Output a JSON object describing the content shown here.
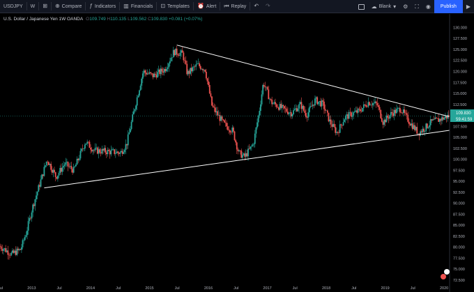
{
  "toolbar": {
    "symbol": "USDJPY",
    "interval": "W",
    "compare": "Compare",
    "indicators": "Indicators",
    "financials": "Financials",
    "templates": "Templates",
    "alert": "Alert",
    "replay": "Replay",
    "theme": "Blank",
    "publish": "Publish"
  },
  "legend": {
    "title": "U.S. Dollar / Japanese Yen  1W  OANDA",
    "open_label": "O",
    "open": "109.749",
    "high_label": "H",
    "high": "110.135",
    "low_label": "L",
    "low": "109.562",
    "close_label": "C",
    "close": "109.830",
    "change": "+0.081 (+0.07%)"
  },
  "price_badge": {
    "price": "109.830",
    "countdown": "59:41:59"
  },
  "colors": {
    "up": "#26a69a",
    "down": "#ef5350",
    "background": "#000000",
    "accent": "#2962ff",
    "trendline": "#ffffff"
  },
  "chart_data": {
    "type": "candlestick",
    "title": "U.S. Dollar / Japanese Yen  1W  OANDA",
    "xlabel": "",
    "ylabel": "",
    "ylim": [
      72.5,
      131.5
    ],
    "y_ticks": [
      "130.000",
      "127.500",
      "125.000",
      "122.500",
      "120.000",
      "117.500",
      "115.000",
      "112.500",
      "110.000",
      "107.500",
      "105.000",
      "102.500",
      "100.000",
      "97.500",
      "95.000",
      "92.500",
      "90.000",
      "87.500",
      "85.000",
      "82.500",
      "80.000",
      "77.500",
      "75.000",
      "72.500"
    ],
    "y_tick_values": [
      130,
      127.5,
      125,
      122.5,
      120,
      117.5,
      115,
      112.5,
      110,
      107.5,
      105,
      102.5,
      100,
      97.5,
      95,
      92.5,
      90,
      87.5,
      85,
      82.5,
      80,
      77.5,
      75,
      72.5
    ],
    "x_ticks": [
      "Jul",
      "2013",
      "Jul",
      "2014",
      "Jul",
      "2015",
      "Jul",
      "2016",
      "Jul",
      "2017",
      "Jul",
      "2018",
      "Jul",
      "2019",
      "Jul",
      "2020"
    ],
    "x_tick_years": [
      2012.5,
      2013,
      2013.5,
      2014,
      2014.5,
      2015,
      2015.5,
      2016,
      2016.5,
      2017,
      2017.5,
      2018,
      2018.5,
      2019,
      2019.5,
      2020
    ],
    "x_range": [
      2012.5,
      2020.13
    ],
    "anchors": [
      [
        2012.5,
        80.2
      ],
      [
        2012.7,
        78.4
      ],
      [
        2012.85,
        79.5
      ],
      [
        2012.95,
        83.5
      ],
      [
        2013.05,
        89.0
      ],
      [
        2013.2,
        95.5
      ],
      [
        2013.3,
        100.0
      ],
      [
        2013.45,
        96.0
      ],
      [
        2013.6,
        99.0
      ],
      [
        2013.75,
        97.5
      ],
      [
        2013.95,
        104.0
      ],
      [
        2014.1,
        102.0
      ],
      [
        2014.3,
        101.8
      ],
      [
        2014.55,
        101.5
      ],
      [
        2014.65,
        103.5
      ],
      [
        2014.8,
        112.5
      ],
      [
        2014.93,
        120.0
      ],
      [
        2015.1,
        119.0
      ],
      [
        2015.3,
        120.5
      ],
      [
        2015.45,
        124.5
      ],
      [
        2015.6,
        124.0
      ],
      [
        2015.68,
        119.5
      ],
      [
        2015.85,
        121.5
      ],
      [
        2015.98,
        120.5
      ],
      [
        2016.1,
        112.0
      ],
      [
        2016.3,
        108.0
      ],
      [
        2016.45,
        106.5
      ],
      [
        2016.55,
        101.5
      ],
      [
        2016.65,
        100.5
      ],
      [
        2016.8,
        103.5
      ],
      [
        2016.9,
        111.0
      ],
      [
        2016.97,
        117.5
      ],
      [
        2017.1,
        113.0
      ],
      [
        2017.3,
        111.5
      ],
      [
        2017.45,
        110.5
      ],
      [
        2017.6,
        112.5
      ],
      [
        2017.7,
        110.0
      ],
      [
        2017.85,
        113.5
      ],
      [
        2017.98,
        112.5
      ],
      [
        2018.1,
        108.5
      ],
      [
        2018.22,
        106.0
      ],
      [
        2018.35,
        109.5
      ],
      [
        2018.5,
        110.5
      ],
      [
        2018.6,
        111.0
      ],
      [
        2018.75,
        113.0
      ],
      [
        2018.9,
        112.5
      ],
      [
        2019.0,
        108.5
      ],
      [
        2019.15,
        110.5
      ],
      [
        2019.3,
        111.5
      ],
      [
        2019.45,
        108.5
      ],
      [
        2019.6,
        106.0
      ],
      [
        2019.7,
        107.0
      ],
      [
        2019.82,
        108.5
      ],
      [
        2019.95,
        109.0
      ],
      [
        2020.05,
        109.5
      ],
      [
        2020.1,
        109.83
      ]
    ],
    "trendlines": [
      {
        "name": "upper",
        "points": [
          [
            2015.5,
            126.0
          ],
          [
            2020.13,
            109.7
          ]
        ]
      },
      {
        "name": "lower",
        "points": [
          [
            2013.25,
            93.5
          ],
          [
            2020.13,
            106.6
          ]
        ]
      }
    ]
  }
}
